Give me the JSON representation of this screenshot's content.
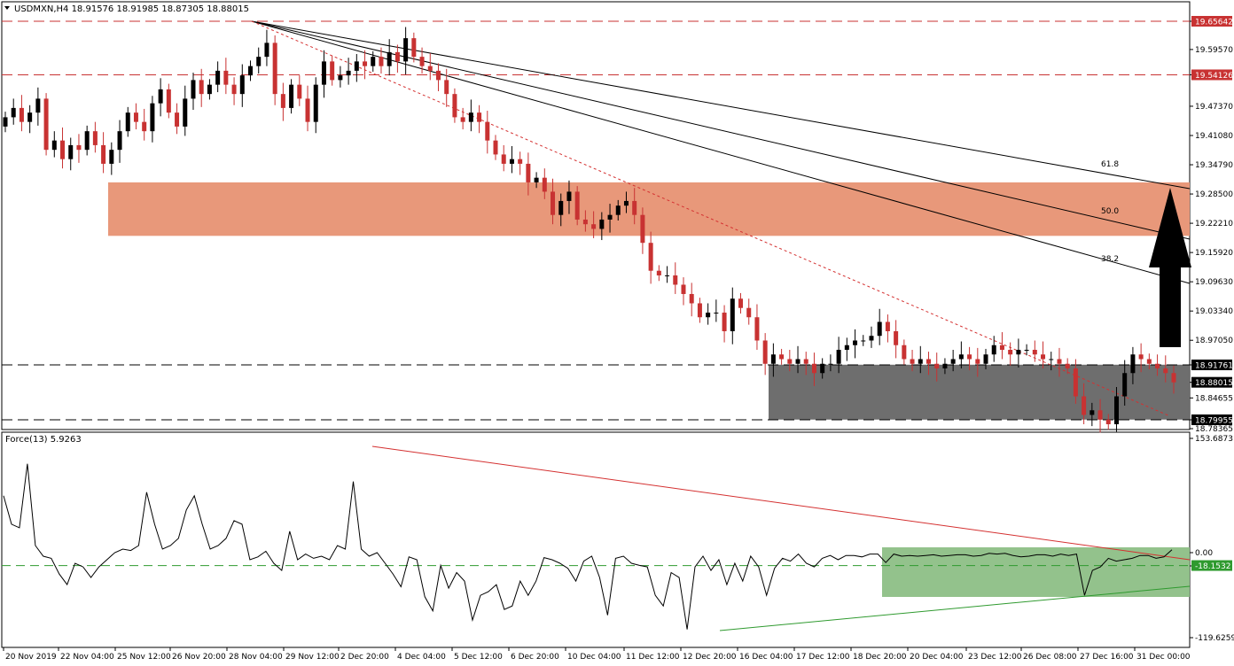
{
  "chart_title": "USDMXN,H4  18.91576 18.91985 18.87305 18.88015",
  "indicator_title": "Force(13) 5.9263",
  "colors": {
    "bull": "#000000",
    "bear": "#c83232",
    "resistance_zone": "#e8987a",
    "support_zone": "#6e6e6e",
    "force_zone": "#8dbf86",
    "red_line": "#d43030",
    "green_line": "#2f9a2f",
    "badge_red": "#c83232",
    "badge_black": "#000000",
    "badge_green": "#2f9a2f"
  },
  "chart_data": [
    {
      "type": "candlestick",
      "symbol": "USDMXN",
      "timeframe": "H4",
      "ylim": [
        18.77,
        19.69
      ],
      "y_ticks": [
        "19.65642",
        "19.59570",
        "19.54126",
        "19.47370",
        "19.41080",
        "19.34790",
        "19.28500",
        "19.22210",
        "19.15920",
        "19.09630",
        "19.03340",
        "18.97050",
        "18.91761",
        "18.88015",
        "18.84655",
        "18.79955",
        "18.78365"
      ],
      "x_labels": [
        "20 Nov 2019",
        "22 Nov 04:00",
        "25 Nov 12:00",
        "26 Nov 20:00",
        "28 Nov 04:00",
        "29 Nov 12:00",
        "2 Dec 20:00",
        "4 Dec 04:00",
        "5 Dec 12:00",
        "6 Dec 20:00",
        "10 Dec 04:00",
        "11 Dec 12:00",
        "12 Dec 20:00",
        "16 Dec 04:00",
        "17 Dec 12:00",
        "18 Dec 20:00",
        "20 Dec 04:00",
        "23 Dec 12:00",
        "26 Dec 08:00",
        "27 Dec 16:00",
        "31 Dec 00:00"
      ],
      "horizontal_levels": [
        {
          "value": 19.65642,
          "label": "19.65642",
          "badge": "red"
        },
        {
          "value": 19.54126,
          "label": "19.54126",
          "badge": "red"
        },
        {
          "value": 18.91761,
          "label": "18.91761",
          "badge": "black"
        },
        {
          "value": 18.88015,
          "label": "18.88015",
          "badge": "black"
        },
        {
          "value": 18.79955,
          "label": "18.79955",
          "badge": "black"
        }
      ],
      "resistance_zone": [
        19.195,
        19.31
      ],
      "support_zone": [
        18.8,
        18.918
      ],
      "fibonacci_fan": {
        "levels": [
          "38.2",
          "50.0",
          "61.8"
        ]
      },
      "arrow_direction": "up",
      "closes": [
        19.45,
        19.47,
        19.44,
        19.46,
        19.49,
        19.38,
        19.4,
        19.36,
        19.39,
        19.38,
        19.42,
        19.39,
        19.35,
        19.38,
        19.42,
        19.46,
        19.44,
        19.42,
        19.48,
        19.51,
        19.46,
        19.43,
        19.49,
        19.53,
        19.5,
        19.52,
        19.55,
        19.52,
        19.5,
        19.54,
        19.56,
        19.58,
        19.61,
        19.5,
        19.47,
        19.52,
        19.49,
        19.44,
        19.52,
        19.57,
        19.53,
        19.54,
        19.55,
        19.57,
        19.56,
        19.58,
        19.56,
        19.59,
        19.57,
        19.62,
        19.58,
        19.56,
        19.55,
        19.53,
        19.5,
        19.45,
        19.44,
        19.46,
        19.44,
        19.4,
        19.37,
        19.35,
        19.36,
        19.35,
        19.31,
        19.32,
        19.29,
        19.24,
        19.27,
        19.29,
        19.23,
        19.22,
        19.21,
        19.23,
        19.24,
        19.26,
        19.27,
        19.24,
        19.18,
        19.12,
        19.11,
        19.11,
        19.09,
        19.07,
        19.05,
        19.02,
        19.03,
        19.03,
        18.99,
        19.06,
        19.04,
        19.02,
        18.97,
        18.92,
        18.94,
        18.93,
        18.92,
        18.93,
        18.92,
        18.9,
        18.92,
        18.92,
        18.95,
        18.96,
        18.97,
        18.97,
        18.98,
        19.01,
        18.99,
        18.96,
        18.93,
        18.92,
        18.93,
        18.92,
        18.91,
        18.92,
        18.93,
        18.94,
        18.93,
        18.92,
        18.94,
        18.96,
        18.95,
        18.94,
        18.95,
        18.95,
        18.94,
        18.93,
        18.93,
        18.92,
        18.91,
        18.85,
        18.81,
        18.82,
        18.8,
        18.79,
        18.85,
        18.9,
        18.94,
        18.93,
        18.92,
        18.91,
        18.9,
        18.88
      ]
    },
    {
      "type": "line",
      "name": "Force(13)",
      "ylim": [
        -125,
        160
      ],
      "y_ticks": [
        "153.6873",
        "0.00",
        "-18.1532",
        "-119.6259"
      ],
      "values": [
        80,
        40,
        35,
        125,
        10,
        -5,
        -8,
        -30,
        -45,
        -15,
        -20,
        -35,
        -20,
        -10,
        0,
        5,
        3,
        10,
        85,
        40,
        5,
        10,
        20,
        60,
        80,
        40,
        5,
        10,
        20,
        45,
        40,
        -10,
        -6,
        2,
        -15,
        -25,
        30,
        -10,
        -2,
        -8,
        -5,
        -10,
        10,
        5,
        100,
        5,
        -5,
        0,
        -15,
        -30,
        -48,
        -6,
        -10,
        -62,
        -82,
        -18,
        -50,
        -28,
        -40,
        -95,
        -60,
        -55,
        -45,
        -80,
        -75,
        -40,
        -60,
        -40,
        -7,
        -10,
        -15,
        -22,
        -40,
        -12,
        -5,
        -35,
        -88,
        -8,
        -5,
        -15,
        -18,
        -20,
        -60,
        -75,
        -28,
        -35,
        -108,
        -20,
        -5,
        -25,
        -10,
        -45,
        -15,
        -40,
        -5,
        -20,
        -60,
        -22,
        -8,
        -12,
        -2,
        -15,
        -20,
        -8,
        -4,
        -10,
        -4,
        -4,
        -6,
        -2,
        -2,
        -14,
        -2,
        -5,
        -4,
        -5,
        -4,
        -3,
        -5,
        -4,
        -3,
        -3,
        -5,
        -4,
        -1,
        -2,
        -1,
        -4,
        -6,
        -5,
        -3,
        -3,
        -5,
        -2,
        -4,
        -2,
        -60,
        -25,
        -20,
        -8,
        -12,
        -10,
        -8,
        -4,
        -4,
        -8,
        -6,
        4
      ]
    }
  ]
}
